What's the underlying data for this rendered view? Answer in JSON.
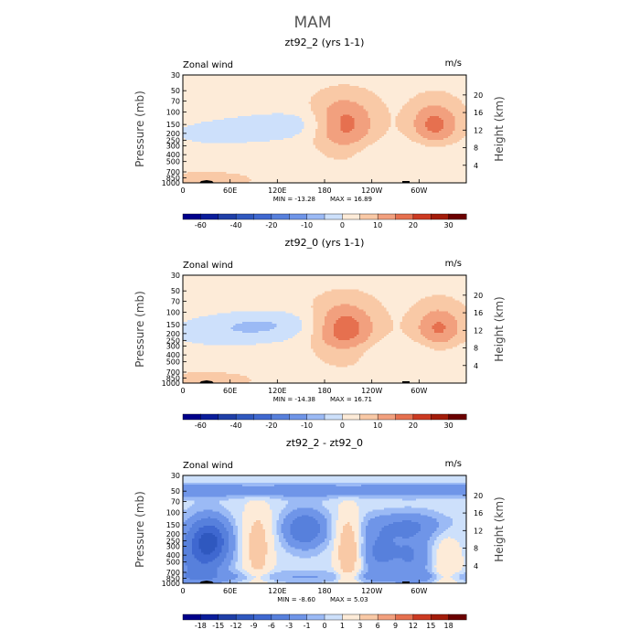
{
  "figure": {
    "suptitle": "MAM",
    "corner_left": "Zonal wind",
    "corner_right": "m/s",
    "ylabel_left": "Pressure (mb)",
    "ylabel_right": "Height (km)",
    "colors": {
      "wind": [
        "#00008b",
        "#1f3fa8",
        "#3f68d0",
        "#6f95e8",
        "#9bbaf5",
        "#cde0fb",
        "#fdebd8",
        "#f9c9a6",
        "#f2a07e",
        "#e6704f",
        "#cc3a22",
        "#a31c0a",
        "#6b0000"
      ]
    }
  },
  "chart_data": [
    {
      "type": "contour",
      "title": "zt92_2 (yrs 1-1)",
      "variable": "Zonal wind",
      "units": "m/s",
      "x_ticks": [
        "0",
        "60E",
        "120E",
        "180",
        "120W",
        "60W"
      ],
      "x_tick_lon": [
        0,
        60,
        120,
        180,
        240,
        300
      ],
      "xlim": [
        0,
        360
      ],
      "y_ticks": [
        "30",
        "50",
        "70",
        "100",
        "150",
        "200",
        "250",
        "300",
        "400",
        "500",
        "700",
        "850",
        "1000"
      ],
      "y_tick_values": [
        30,
        50,
        70,
        100,
        150,
        200,
        250,
        300,
        400,
        500,
        700,
        850,
        1000
      ],
      "ylim": [
        1000,
        30
      ],
      "y_log": true,
      "y2_ticks": [
        "4",
        "8",
        "12",
        "16",
        "20"
      ],
      "colorbar_labels": [
        "-60",
        "-40",
        "-20",
        "-10",
        "0",
        "10",
        "20",
        "30"
      ],
      "min": -13.28,
      "max": 16.89,
      "min_label": "MIN = -13.28",
      "max_label": "MAX = 16.89",
      "features": [
        {
          "kind": "jet",
          "lon": 205,
          "p": 150,
          "peak": 16.89
        },
        {
          "kind": "jet",
          "lon": 320,
          "p": 150,
          "peak": 14
        },
        {
          "kind": "easterly",
          "lon": 150,
          "p": 150,
          "peak": -5
        }
      ]
    },
    {
      "type": "contour",
      "title": "zt92_0 (yrs 1-1)",
      "variable": "Zonal wind",
      "units": "m/s",
      "x_ticks": [
        "0",
        "60E",
        "120E",
        "180",
        "120W",
        "60W"
      ],
      "x_tick_lon": [
        0,
        60,
        120,
        180,
        240,
        300
      ],
      "xlim": [
        0,
        360
      ],
      "y_ticks": [
        "30",
        "50",
        "70",
        "100",
        "150",
        "200",
        "250",
        "300",
        "400",
        "500",
        "700",
        "850",
        "1000"
      ],
      "y_tick_values": [
        30,
        50,
        70,
        100,
        150,
        200,
        250,
        300,
        400,
        500,
        700,
        850,
        1000
      ],
      "ylim": [
        1000,
        30
      ],
      "y_log": true,
      "y2_ticks": [
        "4",
        "8",
        "12",
        "16",
        "20"
      ],
      "colorbar_labels": [
        "-60",
        "-40",
        "-20",
        "-10",
        "0",
        "10",
        "20",
        "30"
      ],
      "min": -14.38,
      "max": 16.71,
      "min_label": "MIN = -14.38",
      "max_label": "MAX = 16.71",
      "features": [
        {
          "kind": "jet",
          "lon": 205,
          "p": 170,
          "peak": 16.71
        },
        {
          "kind": "jet",
          "lon": 325,
          "p": 170,
          "peak": 13
        },
        {
          "kind": "easterly",
          "lon": 110,
          "p": 150,
          "peak": -6
        }
      ]
    },
    {
      "type": "contour",
      "title": "zt92_2 - zt92_0",
      "variable": "Zonal wind",
      "units": "m/s",
      "x_ticks": [
        "0",
        "60E",
        "120E",
        "180",
        "120W",
        "60W"
      ],
      "x_tick_lon": [
        0,
        60,
        120,
        180,
        240,
        300
      ],
      "xlim": [
        0,
        360
      ],
      "y_ticks": [
        "30",
        "50",
        "70",
        "100",
        "150",
        "200",
        "250",
        "300",
        "400",
        "500",
        "700",
        "850",
        "1000"
      ],
      "y_tick_values": [
        30,
        50,
        70,
        100,
        150,
        200,
        250,
        300,
        400,
        500,
        700,
        850,
        1000
      ],
      "ylim": [
        1000,
        30
      ],
      "y_log": true,
      "y2_ticks": [
        "4",
        "8",
        "12",
        "16",
        "20"
      ],
      "colorbar_labels": [
        "-18",
        "-15",
        "-12",
        "-9",
        "-6",
        "-3",
        "-1",
        "0",
        "1",
        "3",
        "6",
        "9",
        "12",
        "15",
        "18"
      ],
      "min": -8.6,
      "max": 5.03,
      "min_label": "MIN = -8.60",
      "max_label": "MAX = 5.03",
      "features": [
        {
          "kind": "minimum",
          "lon": 35,
          "p": 250,
          "peak": -8.6
        },
        {
          "kind": "minimum",
          "lon": 155,
          "p": 170,
          "peak": -6
        },
        {
          "kind": "maximum",
          "lon": 95,
          "p": 300,
          "peak": 4
        },
        {
          "kind": "maximum",
          "lon": 205,
          "p": 300,
          "peak": 5.03
        }
      ]
    }
  ]
}
